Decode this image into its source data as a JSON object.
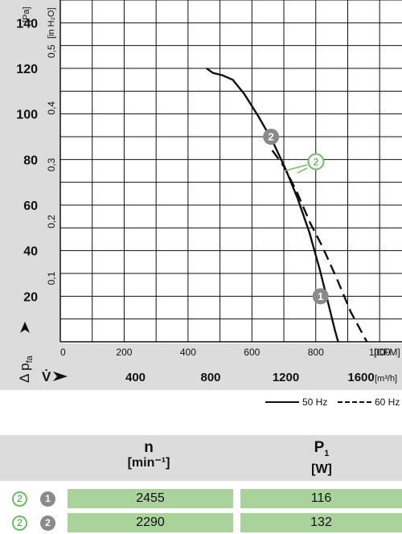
{
  "chart_data": {
    "type": "line",
    "y_unit": "[Pa]",
    "y_unit_secondary": "[in H₂O]",
    "y_axis_symbol": "Δ p",
    "y_axis_symbol_sub": "fa",
    "y_ticks": [
      "20",
      "40",
      "60",
      "80",
      "100",
      "120",
      "140"
    ],
    "y_ticks_secondary": [
      "0,1",
      "0,2",
      "0,3",
      "0,4",
      "0,5"
    ],
    "x_unit": "[CFM]",
    "x_ticks": [
      "0",
      "200",
      "400",
      "600",
      "800",
      "1000"
    ],
    "x_unit_secondary": "[m³/h]",
    "x_axis_symbol": "V̇",
    "x_ticks_secondary": [
      "400",
      "800",
      "1200",
      "1600"
    ],
    "ylim": [
      0,
      150
    ],
    "xlim": [
      0,
      1070
    ],
    "series": [
      {
        "name": "50 Hz",
        "style": "solid",
        "points": [
          [
            458,
            120
          ],
          [
            478,
            118
          ],
          [
            507,
            117
          ],
          [
            540,
            115
          ],
          [
            575,
            109
          ],
          [
            620,
            99
          ],
          [
            665,
            88
          ],
          [
            705,
            76
          ],
          [
            743,
            63
          ],
          [
            780,
            48
          ],
          [
            812,
            32
          ],
          [
            837,
            18
          ],
          [
            860,
            5
          ],
          [
            870,
            0
          ]
        ]
      },
      {
        "name": "60 Hz",
        "style": "dashed",
        "points": [
          [
            664,
            84
          ],
          [
            700,
            77
          ],
          [
            740,
            66
          ],
          [
            783,
            52
          ],
          [
            820,
            42
          ],
          [
            865,
            28
          ],
          [
            910,
            13
          ],
          [
            960,
            0
          ]
        ]
      }
    ],
    "operating_points": [
      {
        "label": "1",
        "x": 815,
        "y": 20
      },
      {
        "label": "2",
        "x": 660,
        "y": 90
      }
    ],
    "condition_marker": {
      "label": "2"
    }
  },
  "legend": [
    {
      "label": "50 Hz",
      "style": "solid"
    },
    {
      "label": "60 Hz",
      "style": "dashed"
    }
  ],
  "table": {
    "headers": [
      {
        "symbol": "n",
        "unit": "[min⁻¹]"
      },
      {
        "symbol": "P",
        "symbol_sub": "1",
        "unit": "[W]"
      }
    ],
    "rows": [
      {
        "condition": "2",
        "point": "1",
        "n": "2455",
        "p1": "116"
      },
      {
        "condition": "2",
        "point": "2",
        "n": "2290",
        "p1": "132"
      }
    ]
  },
  "colors": {
    "grid": "#111111",
    "axis_band": "#dcdcdc",
    "marker_gray": "#8a8a8a",
    "marker_green": "#6abf5e",
    "cell_green": "#a9d39b"
  }
}
